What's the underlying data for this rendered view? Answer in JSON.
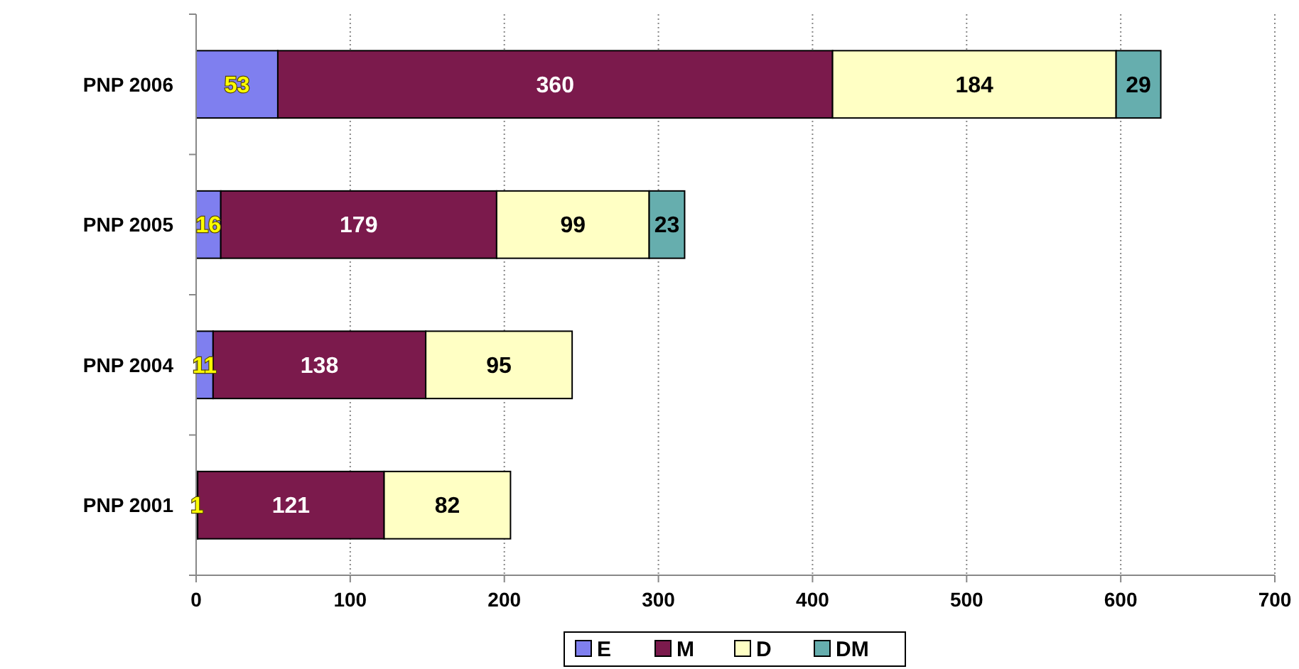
{
  "chart_data": {
    "type": "bar",
    "orientation": "horizontal",
    "stacked": true,
    "data_labels": true,
    "categories": [
      "PNP 2006",
      "PNP 2005",
      "PNP 2004",
      "PNP 2001"
    ],
    "series": [
      {
        "name": "E",
        "color": "#7f7fef",
        "values": [
          53,
          16,
          11,
          1
        ]
      },
      {
        "name": "M",
        "color": "#7b1a4c",
        "values": [
          360,
          179,
          138,
          121
        ]
      },
      {
        "name": "D",
        "color": "#ffffc4",
        "values": [
          184,
          99,
          95,
          82
        ]
      },
      {
        "name": "DM",
        "color": "#66aeae",
        "values": [
          29,
          23,
          null,
          null
        ]
      }
    ],
    "xlim": [
      0,
      700
    ],
    "xticks": [
      0,
      100,
      200,
      300,
      400,
      500,
      600,
      700
    ],
    "grid": "x",
    "legend": "bottom"
  }
}
